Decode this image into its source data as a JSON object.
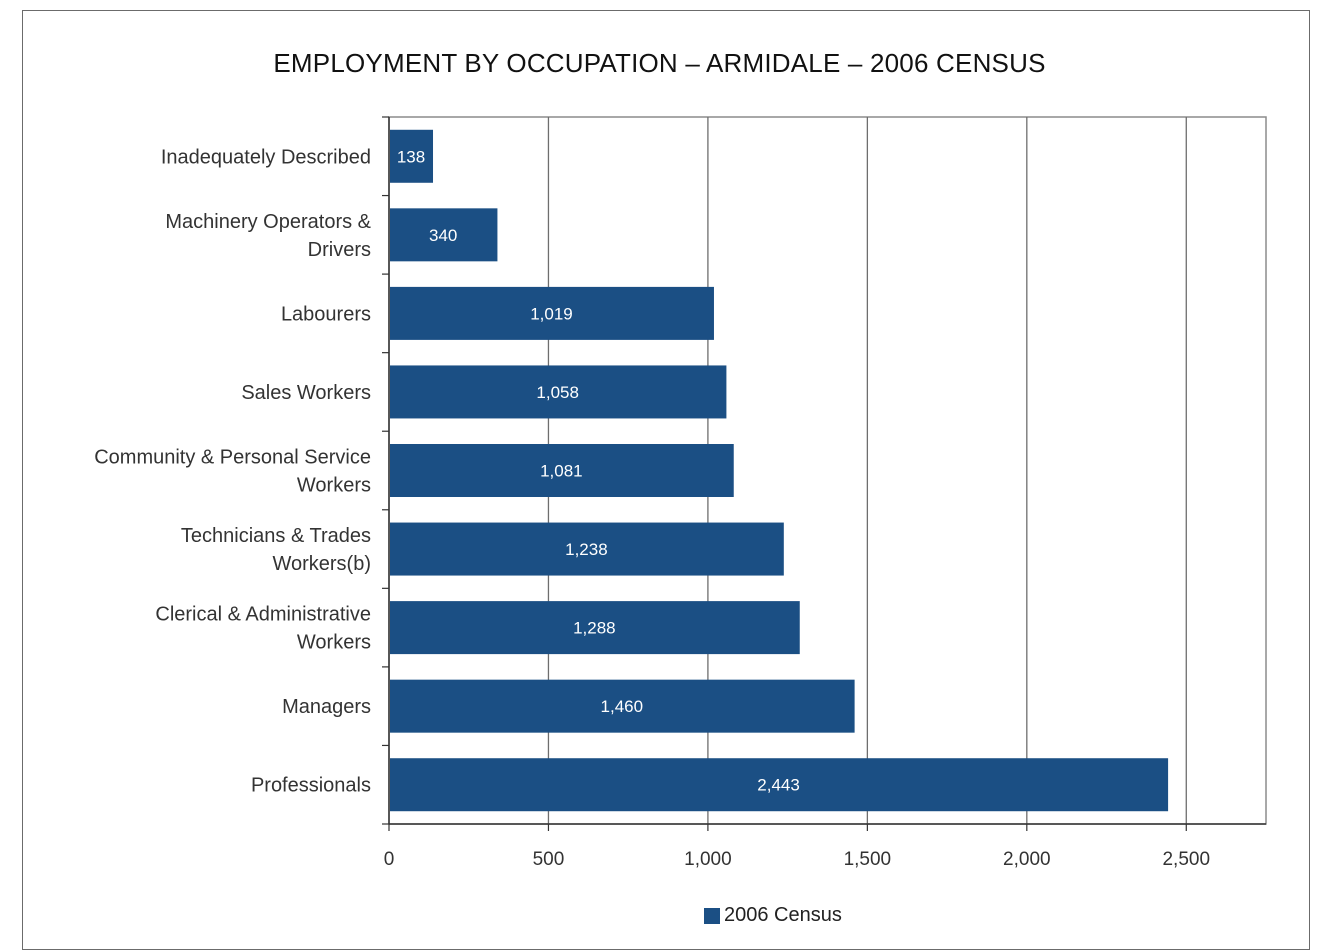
{
  "chart_data": {
    "type": "bar",
    "orientation": "horizontal",
    "title": "EMPLOYMENT BY OCCUPATION – ARMIDALE – 2006 CENSUS",
    "categories": [
      [
        "Inadequately Described"
      ],
      [
        "Machinery Operators &",
        "Drivers"
      ],
      [
        "Labourers"
      ],
      [
        "Sales Workers"
      ],
      [
        "Community & Personal Service",
        "Workers"
      ],
      [
        "Technicians & Trades",
        "Workers(b)"
      ],
      [
        "Clerical & Administrative",
        "Workers"
      ],
      [
        "Managers"
      ],
      [
        "Professionals"
      ]
    ],
    "series": [
      {
        "name": "2006 Census",
        "values": [
          138,
          340,
          1019,
          1058,
          1081,
          1238,
          1288,
          1460,
          2443
        ],
        "labels": [
          "138",
          "340",
          "1,019",
          "1,058",
          "1,081",
          "1,238",
          "1,288",
          "1,460",
          "2,443"
        ],
        "color": "#1b4f84"
      }
    ],
    "xlim": [
      0,
      2750
    ],
    "xticks": [
      0,
      500,
      1000,
      1500,
      2000,
      2500
    ],
    "xtick_labels": [
      "0",
      "500",
      "1,000",
      "1,500",
      "2,000",
      "2,500"
    ],
    "grid": "vertical",
    "legend": "bottom"
  }
}
